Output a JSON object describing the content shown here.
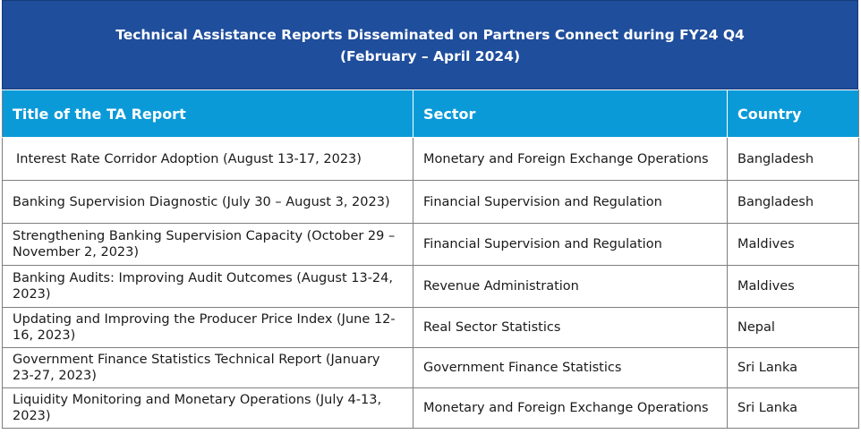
{
  "header": {
    "line1": "Technical Assistance Reports Disseminated on Partners Connect during FY24 Q4",
    "line2": "(February – April 2024)"
  },
  "table": {
    "columns": [
      "Title of the TA Report",
      "Sector",
      "Country"
    ],
    "rows": [
      {
        "title": "Interest Rate Corridor Adoption (August 13-17, 2023)",
        "sector": "Monetary and Foreign Exchange Operations",
        "country": "Bangladesh"
      },
      {
        "title": "Banking Supervision Diagnostic (July 30 – August 3, 2023)",
        "sector": "Financial Supervision and Regulation",
        "country": "Bangladesh"
      },
      {
        "title": "Strengthening Banking Supervision Capacity (October 29 – November 2, 2023)",
        "sector": "Financial Supervision and Regulation",
        "country": "Maldives"
      },
      {
        "title": "Banking Audits: Improving Audit Outcomes (August 13-24, 2023)",
        "sector": "Revenue Administration",
        "country": "Maldives"
      },
      {
        "title": "Updating and Improving the Producer Price Index (June 12-16, 2023)",
        "sector": "Real Sector Statistics",
        "country": "Nepal"
      },
      {
        "title": "Government Finance Statistics Technical Report (January 23-27, 2023)",
        "sector": "Government Finance Statistics",
        "country": "Sri Lanka"
      },
      {
        "title": "Liquidity Monitoring and Monetary Operations (July 4-13, 2023)",
        "sector": "Monetary and Foreign Exchange Operations",
        "country": "Sri Lanka"
      }
    ]
  },
  "colors": {
    "title_bar": "#1f4e9c",
    "header_row": "#0b9ad8",
    "border": "#7f7f7f"
  }
}
